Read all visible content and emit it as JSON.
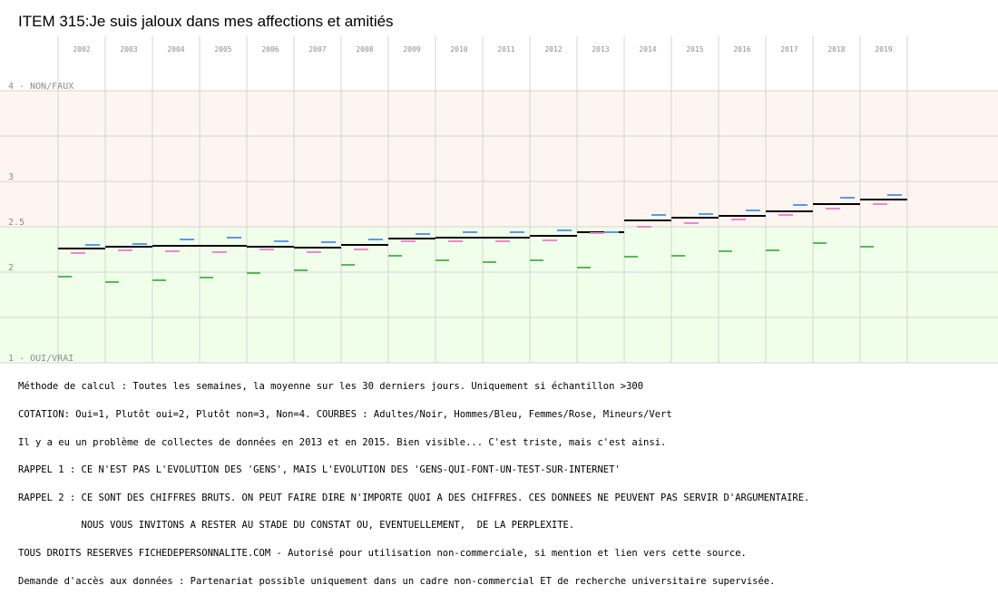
{
  "chart_data": {
    "type": "line",
    "title": "ITEM 315:Je suis jaloux dans mes affections et amitiés",
    "ylim": [
      1,
      4
    ],
    "y_labels": [
      {
        "value": 4,
        "text": "4 - NON/FAUX"
      },
      {
        "value": 3,
        "text": "3"
      },
      {
        "value": 2.5,
        "text": "2.5"
      },
      {
        "value": 2,
        "text": "2"
      },
      {
        "value": 1,
        "text": "1 - OUI/VRAI"
      }
    ],
    "x": [
      "2002",
      "2003",
      "2004",
      "2005",
      "2006",
      "2007",
      "2008",
      "2009",
      "2010",
      "2011",
      "2012",
      "2013",
      "2014",
      "2015",
      "2016",
      "2017",
      "2018",
      "2019"
    ],
    "colors": {
      "Adultes": "#000000",
      "Hommes": "#5a9ae6",
      "Femmes": "#ee88cc",
      "Mineurs": "#55bb55"
    },
    "series": [
      {
        "name": "Adultes",
        "values": [
          2.26,
          2.28,
          2.29,
          2.29,
          2.28,
          2.27,
          2.3,
          2.37,
          2.38,
          2.38,
          2.4,
          2.44,
          2.57,
          2.6,
          2.62,
          2.67,
          2.75,
          2.8
        ]
      },
      {
        "name": "Hommes",
        "values": [
          2.3,
          2.31,
          2.36,
          2.38,
          2.34,
          2.33,
          2.36,
          2.42,
          2.44,
          2.44,
          2.46,
          2.44,
          2.63,
          2.64,
          2.68,
          2.74,
          2.82,
          2.85
        ]
      },
      {
        "name": "Femmes",
        "values": [
          2.21,
          2.24,
          2.23,
          2.22,
          2.25,
          2.22,
          2.25,
          2.34,
          2.34,
          2.34,
          2.35,
          2.43,
          2.5,
          2.54,
          2.58,
          2.63,
          2.7,
          2.75
        ]
      },
      {
        "name": "Mineurs",
        "values": [
          1.95,
          1.89,
          1.91,
          1.94,
          1.99,
          2.02,
          2.08,
          2.18,
          2.13,
          2.11,
          2.13,
          2.05,
          2.17,
          2.18,
          2.23,
          2.24,
          2.32,
          2.28
        ]
      }
    ]
  },
  "notes": [
    "Méthode de calcul : Toutes les semaines, la moyenne sur les 30 derniers jours. Uniquement si échantillon >300",
    "COTATION: Oui=1, Plutôt oui=2, Plutôt non=3, Non=4. COURBES : Adultes/Noir, Hommes/Bleu, Femmes/Rose, Mineurs/Vert",
    "Il y a eu un problème de collectes de données en 2013 et en 2015. Bien visible... C'est triste, mais c'est ainsi.",
    "RAPPEL 1 : CE N'EST PAS L'EVOLUTION DES 'GENS', MAIS L'EVOLUTION DES 'GENS-QUI-FONT-UN-TEST-SUR-INTERNET'",
    "RAPPEL 2 : CE SONT DES CHIFFRES BRUTS. ON PEUT FAIRE DIRE N'IMPORTE QUOI A DES CHIFFRES. CES DONNEES NE PEUVENT PAS SERVIR D'ARGUMENTAIRE.",
    "           NOUS VOUS INVITONS A RESTER AU STADE DU CONSTAT OU, EVENTUELLEMENT,  DE LA PERPLEXITE.",
    "TOUS DROITS RESERVES FICHEDEPERSONNALITE.COM - Autorisé pour utilisation non-commerciale, si mention et lien vers cette source.",
    "Demande d'accès aux données : Partenariat possible uniquement dans un cadre non-commercial ET de recherche universitaire supervisée."
  ]
}
